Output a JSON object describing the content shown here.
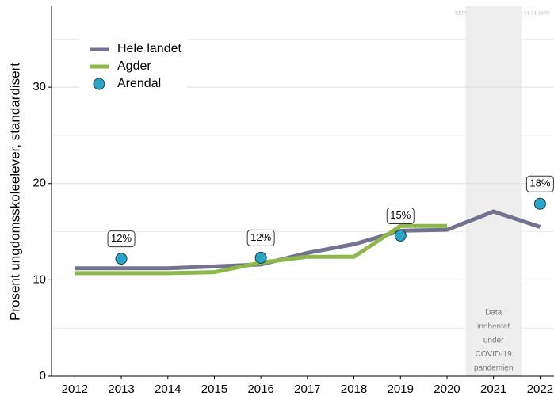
{
  "chart_data": {
    "type": "line",
    "y_label": "Prosent ungdomsskoleelever, standardisert",
    "watermark": "DEPRESJON_UNGDATA_2023-01-04-14:09",
    "x": [
      2012,
      2013,
      2014,
      2015,
      2016,
      2017,
      2018,
      2019,
      2020,
      2021,
      2022
    ],
    "xlim": [
      2011.5,
      2022.3
    ],
    "xticks": [
      2012,
      2013,
      2014,
      2015,
      2016,
      2017,
      2018,
      2019,
      2020,
      2021,
      2022
    ],
    "ylim": [
      0,
      38.4
    ],
    "yticks": [
      0,
      10,
      20,
      30
    ],
    "yminor": [
      5,
      15,
      25,
      35
    ],
    "grid": true,
    "legend": "upper left",
    "shaded_region": {
      "xlim": [
        2020.4,
        2021.6
      ],
      "label": [
        "Data",
        "innhentet",
        "under",
        "COVID-19",
        "pandemien"
      ]
    },
    "series": [
      {
        "name": "Hele landet",
        "type": "line",
        "color": "#737391",
        "values": [
          11.2,
          11.2,
          11.2,
          11.4,
          11.6,
          12.8,
          13.7,
          15.1,
          15.2,
          17.1,
          15.5
        ]
      },
      {
        "name": "Agder",
        "type": "line",
        "color": "#8fb84a",
        "values": [
          10.7,
          10.7,
          10.7,
          10.8,
          11.8,
          12.4,
          12.4,
          15.6,
          15.6,
          null,
          null
        ]
      },
      {
        "name": "Arendal",
        "type": "scatter",
        "color": "#2aa5c5",
        "values": [
          null,
          12.2,
          null,
          null,
          12.3,
          null,
          null,
          14.6,
          null,
          null,
          17.9
        ],
        "value_labels": [
          null,
          "12%",
          null,
          null,
          "12%",
          null,
          null,
          "15%",
          null,
          null,
          "18%"
        ]
      }
    ]
  }
}
